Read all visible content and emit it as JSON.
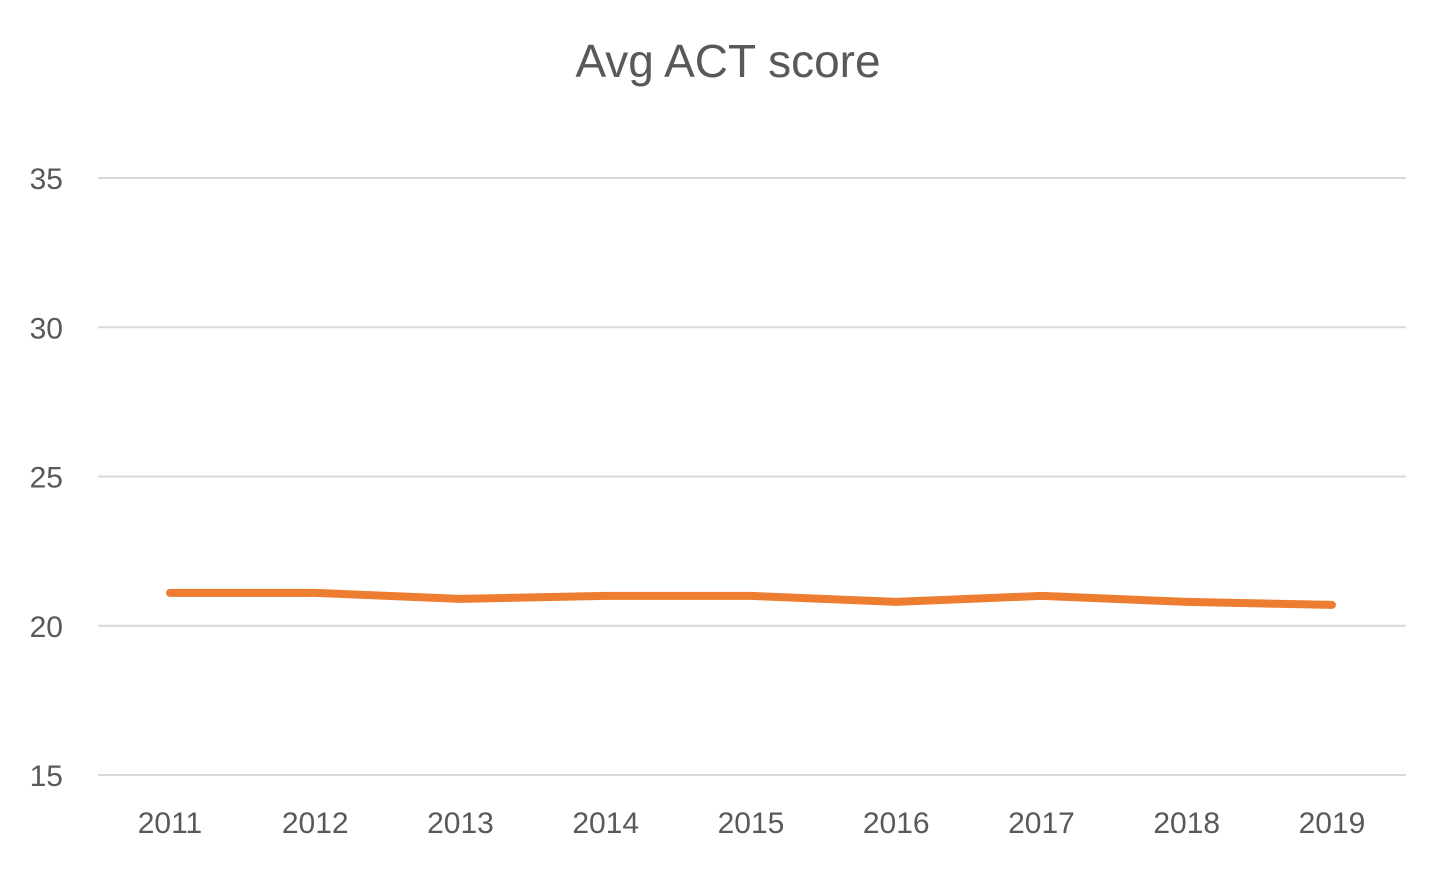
{
  "chart_data": {
    "type": "line",
    "title": "Avg ACT score",
    "xlabel": "",
    "ylabel": "",
    "categories": [
      "2011",
      "2012",
      "2013",
      "2014",
      "2015",
      "2016",
      "2017",
      "2018",
      "2019"
    ],
    "series": [
      {
        "values": [
          21.1,
          21.1,
          20.9,
          21.0,
          21.0,
          20.8,
          21.0,
          20.8,
          20.7
        ],
        "color": "#ED7D31"
      }
    ],
    "ylim": [
      15,
      35
    ],
    "yticks": [
      "15",
      "20",
      "25",
      "30",
      "35"
    ],
    "grid": true,
    "gridline_color": "#D9D9D9",
    "legend": "none"
  }
}
